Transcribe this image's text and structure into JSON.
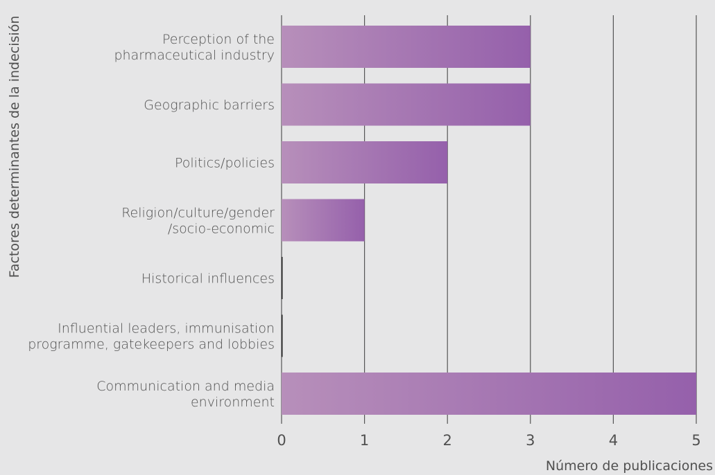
{
  "chart_data": {
    "type": "bar",
    "orientation": "horizontal",
    "categories": [
      [
        "Perception of the",
        "pharmaceutical industry"
      ],
      [
        "Geographic barriers"
      ],
      [
        "Politics/policies"
      ],
      [
        "Religion/culture/gender",
        "/socio-economic"
      ],
      [
        "Historical influences"
      ],
      [
        "Influential leaders, immunisation",
        "programme, gatekeepers and lobbies"
      ],
      [
        "Communication and media",
        "environment"
      ]
    ],
    "values": [
      3,
      3,
      2,
      1,
      0,
      0,
      5
    ],
    "xlabel": "Número de publicaciones",
    "ylabel": "Factores determinantes de la indecisión",
    "xlim": [
      0,
      5
    ],
    "xticks": [
      "0",
      "1",
      "2",
      "3",
      "4",
      "5"
    ],
    "grid": "vertical",
    "colors": {
      "bar_start": "#b78fba",
      "bar_end": "#9560ab",
      "grid": "#555555",
      "background": "#e6e6e7"
    }
  }
}
